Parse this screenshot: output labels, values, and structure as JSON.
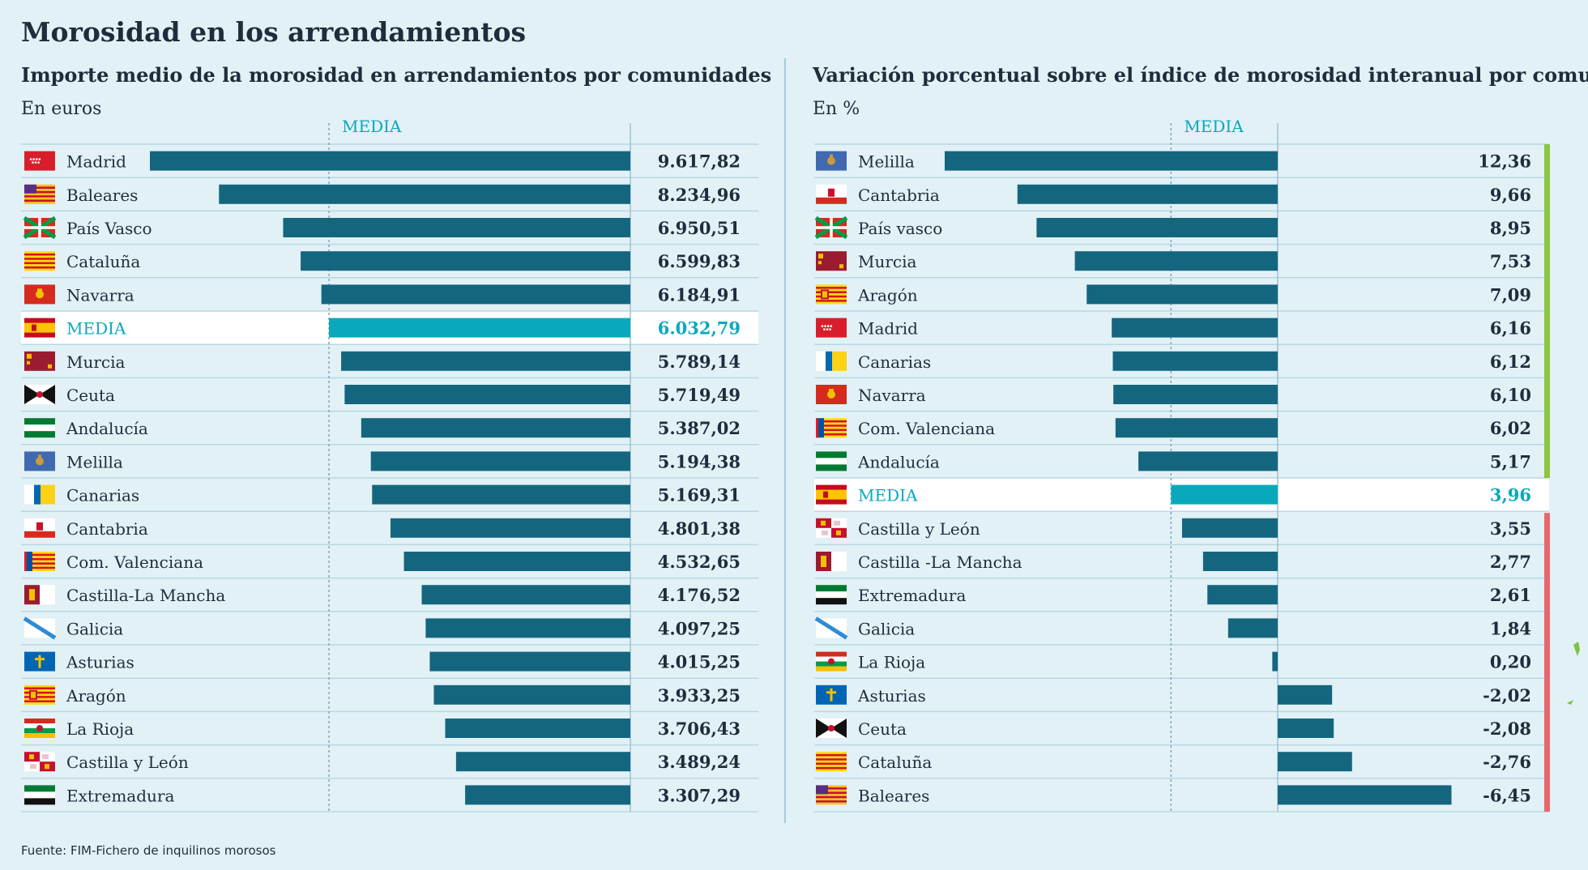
{
  "page": {
    "title": "Morosidad en los arrendamientos",
    "source": "Fuente: FIM-Fichero de inquilinos morosos"
  },
  "colors": {
    "background": "#e2f1f6",
    "bar": "#14667f",
    "media_bar": "#0aa8bd",
    "media_text": "#0aa8bd",
    "highlight_row": "#ffffff",
    "above_avg_marker": "#8cc63f",
    "below_avg_marker": "#e8676b",
    "gridline": "#b9d7e1",
    "text": "#1d2d3c"
  },
  "chart_data": [
    {
      "type": "bar",
      "orientation": "horizontal",
      "title": "Importe medio de la morosidad en arrendamientos por comunidades",
      "unit_label": "En euros",
      "reference_label": "MEDIA",
      "reference_value": 6032.79,
      "xlim": [
        0,
        9617.82
      ],
      "categories": [
        "Madrid",
        "Baleares",
        "País Vasco",
        "Cataluña",
        "Navarra",
        "MEDIA",
        "Murcia",
        "Ceuta",
        "Andalucía",
        "Melilla",
        "Canarias",
        "Cantabria",
        "Com. Valenciana",
        "Castilla-La Mancha",
        "Galicia",
        "Asturias",
        "Aragón",
        "La Rioja",
        "Castilla y León",
        "Extremadura"
      ],
      "flags": [
        "madrid",
        "baleares",
        "pais-vasco",
        "cataluna",
        "navarra",
        "espana",
        "murcia",
        "ceuta",
        "andalucia",
        "melilla",
        "canarias",
        "cantabria",
        "valenciana",
        "castilla-la-mancha",
        "galicia",
        "asturias",
        "aragon",
        "la-rioja",
        "castilla-y-leon",
        "extremadura"
      ],
      "values": [
        9617.82,
        8234.96,
        6950.51,
        6599.83,
        6184.91,
        6032.79,
        5789.14,
        5719.49,
        5387.02,
        5194.38,
        5169.31,
        4801.38,
        4532.65,
        4176.52,
        4097.25,
        4015.25,
        3933.25,
        3706.43,
        3489.24,
        3307.29
      ],
      "value_labels": [
        "9.617,82",
        "8.234,96",
        "6.950,51",
        "6.599,83",
        "6.184,91",
        "6.032,79",
        "5.789,14",
        "5.719,49",
        "5.387,02",
        "5.194,38",
        "5.169,31",
        "4.801,38",
        "4.532,65",
        "4.176,52",
        "4.097,25",
        "4.015,25",
        "3.933,25",
        "3.706,43",
        "3.489,24",
        "3.307,29"
      ]
    },
    {
      "type": "bar",
      "orientation": "horizontal",
      "title": "Variación porcentual sobre el índice de morosidad interanual por comunidad",
      "unit_label": "En %",
      "reference_label": "MEDIA",
      "reference_value": 3.96,
      "xlim": [
        -6.45,
        12.36
      ],
      "categories": [
        "Melilla",
        "Cantabria",
        "País vasco",
        "Murcia",
        "Aragón",
        "Madrid",
        "Canarias",
        "Navarra",
        "Com. Valenciana",
        "Andalucía",
        "MEDIA",
        "Castilla y León",
        "Castilla -La Mancha",
        "Extremadura",
        "Galicia",
        "La Rioja",
        "Asturias",
        "Ceuta",
        "Cataluña",
        "Baleares"
      ],
      "flags": [
        "melilla",
        "cantabria",
        "pais-vasco",
        "murcia",
        "aragon",
        "madrid",
        "canarias",
        "navarra",
        "valenciana",
        "andalucia",
        "espana",
        "castilla-y-leon",
        "castilla-la-mancha",
        "extremadura",
        "galicia",
        "la-rioja",
        "asturias",
        "ceuta",
        "cataluna",
        "baleares"
      ],
      "values": [
        12.36,
        9.66,
        8.95,
        7.53,
        7.09,
        6.16,
        6.12,
        6.1,
        6.02,
        5.17,
        3.96,
        3.55,
        2.77,
        2.61,
        1.84,
        0.2,
        -2.02,
        -2.08,
        -2.76,
        -6.45
      ],
      "value_labels": [
        "12,36",
        "9,66",
        "8,95",
        "7,53",
        "7,09",
        "6,16",
        "6,12",
        "6,10",
        "6,02",
        "5,17",
        "3,96",
        "3,55",
        "2,77",
        "2,61",
        "1,84",
        "0,20",
        "-2,02",
        "-2,08",
        "-2,76",
        "-6,45"
      ]
    }
  ]
}
